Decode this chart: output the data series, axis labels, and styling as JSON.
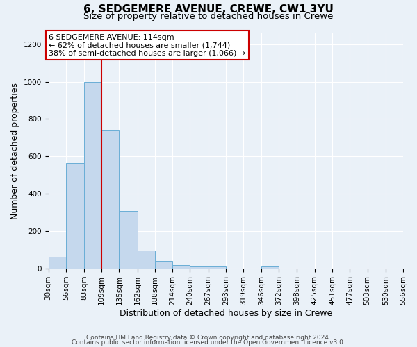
{
  "title": "6, SEDGEMERE AVENUE, CREWE, CW1 3YU",
  "subtitle": "Size of property relative to detached houses in Crewe",
  "xlabel": "Distribution of detached houses by size in Crewe",
  "ylabel": "Number of detached properties",
  "footer_line1": "Contains HM Land Registry data © Crown copyright and database right 2024.",
  "footer_line2": "Contains public sector information licensed under the Open Government Licence v3.0.",
  "bin_edges": [
    30,
    56,
    83,
    109,
    135,
    162,
    188,
    214,
    240,
    267,
    293,
    319,
    346,
    372,
    398,
    425,
    451,
    477,
    503,
    530,
    556
  ],
  "bin_labels": [
    "30sqm",
    "56sqm",
    "83sqm",
    "109sqm",
    "135sqm",
    "162sqm",
    "188sqm",
    "214sqm",
    "240sqm",
    "267sqm",
    "293sqm",
    "319sqm",
    "346sqm",
    "372sqm",
    "398sqm",
    "425sqm",
    "451sqm",
    "477sqm",
    "503sqm",
    "530sqm",
    "556sqm"
  ],
  "bar_values": [
    65,
    565,
    1000,
    740,
    310,
    95,
    40,
    20,
    10,
    10,
    0,
    0,
    10,
    0,
    0,
    0,
    0,
    0,
    0,
    0
  ],
  "bar_color": "#c5d8ed",
  "bar_edge_color": "#6aaed6",
  "red_line_x": 109,
  "annotation_text_line1": "6 SEDGEMERE AVENUE: 114sqm",
  "annotation_text_line2": "← 62% of detached houses are smaller (1,744)",
  "annotation_text_line3": "38% of semi-detached houses are larger (1,066) →",
  "annotation_box_color": "#ffffff",
  "annotation_box_edge_color": "#cc0000",
  "ylim": [
    0,
    1260
  ],
  "yticks": [
    0,
    200,
    400,
    600,
    800,
    1000,
    1200
  ],
  "bg_color": "#eaf1f8",
  "plot_bg_color": "#eaf1f8",
  "grid_color": "#ffffff",
  "title_fontsize": 11,
  "subtitle_fontsize": 9.5,
  "axis_label_fontsize": 9,
  "tick_fontsize": 7.5,
  "annotation_fontsize": 8,
  "footer_fontsize": 6.5
}
